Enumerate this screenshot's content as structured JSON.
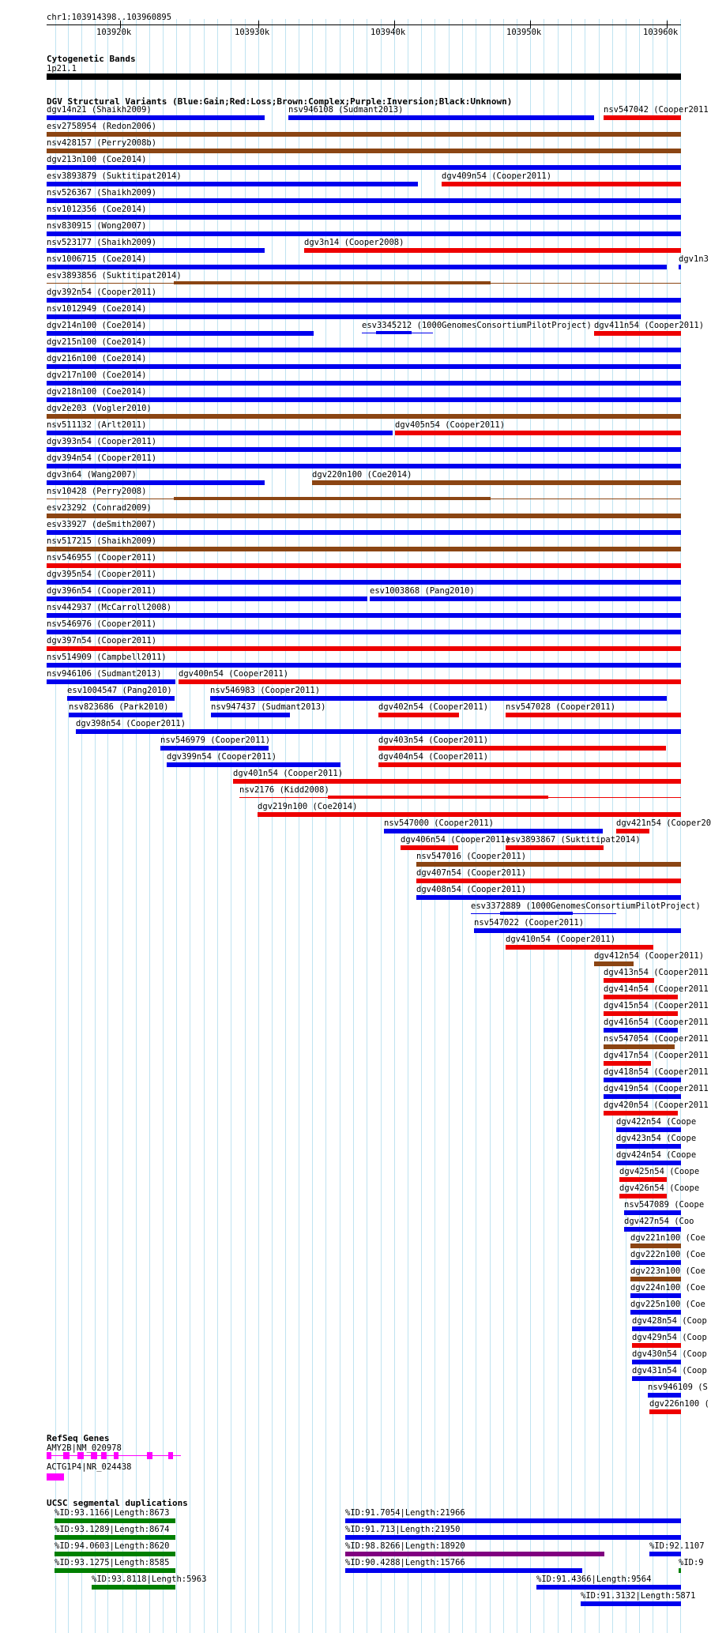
{
  "ruler": {
    "position": "chr1:103914398..103960895",
    "ticks": [
      "103920k",
      "103930k",
      "103940k",
      "103950k",
      "103960k"
    ]
  },
  "cyto": {
    "title": "Cytogenetic Bands",
    "band": "1p21.1"
  },
  "dgv": {
    "title": "DGV Structural Variants (Blue:Gain;Red:Loss;Brown:Complex;Purple:Inversion;Black:Unknown)",
    "colors": {
      "gain": "#0000ee",
      "loss": "#ee0000",
      "complex": "#8b4513",
      "inversion": "#800080",
      "unknown": "#000000"
    },
    "rows": [
      {
        "label": "dgv14n21 (Shaikh2009)",
        "type": "gain"
      },
      {
        "label": "nsv946108 (Sudmant2013)",
        "type": "gain"
      },
      {
        "label": "nsv547042 (Cooper2011",
        "type": "loss"
      },
      {
        "label": "esv2758954 (Redon2006)",
        "type": "complex"
      },
      {
        "label": "nsv428157 (Perry2008b)",
        "type": "complex"
      },
      {
        "label": "dgv213n100 (Coe2014)",
        "type": "gain"
      },
      {
        "label": "esv3893879 (Suktitipat2014)",
        "type": "gain"
      },
      {
        "label": "dgv409n54 (Cooper2011)",
        "type": "loss"
      },
      {
        "label": "nsv526367 (Shaikh2009)",
        "type": "gain"
      },
      {
        "label": "nsv1012356 (Coe2014)",
        "type": "gain"
      },
      {
        "label": "nsv830915 (Wong2007)",
        "type": "gain"
      },
      {
        "label": "nsv523177 (Shaikh2009)",
        "type": "gain"
      },
      {
        "label": "dgv3n14 (Cooper2008)",
        "type": "loss"
      },
      {
        "label": "nsv1006715 (Coe2014)",
        "type": "gain"
      },
      {
        "label": "dgv1n3",
        "type": "gain"
      },
      {
        "label": "esv3893856 (Suktitipat2014)",
        "type": "complex"
      },
      {
        "label": "dgv392n54 (Cooper2011)",
        "type": "gain"
      },
      {
        "label": "nsv1012949 (Coe2014)",
        "type": "gain"
      },
      {
        "label": "dgv214n100 (Coe2014)",
        "type": "gain"
      },
      {
        "label": "esv3345212 (1000GenomesConsortiumPilotProject)",
        "type": "gain"
      },
      {
        "label": "dgv411n54 (Cooper2011)",
        "type": "loss"
      },
      {
        "label": "dgv215n100 (Coe2014)",
        "type": "gain"
      },
      {
        "label": "dgv216n100 (Coe2014)",
        "type": "gain"
      },
      {
        "label": "dgv217n100 (Coe2014)",
        "type": "gain"
      },
      {
        "label": "dgv218n100 (Coe2014)",
        "type": "gain"
      },
      {
        "label": "dgv2e203 (Vogler2010)",
        "type": "complex"
      },
      {
        "label": "nsv511132 (Arlt2011)",
        "type": "gain"
      },
      {
        "label": "dgv405n54 (Cooper2011)",
        "type": "loss"
      },
      {
        "label": "dgv393n54 (Cooper2011)",
        "type": "gain"
      },
      {
        "label": "dgv394n54 (Cooper2011)",
        "type": "gain"
      },
      {
        "label": "dgv3n64 (Wang2007)",
        "type": "gain"
      },
      {
        "label": "dgv220n100 (Coe2014)",
        "type": "complex"
      },
      {
        "label": "nsv10428 (Perry2008)",
        "type": "complex"
      },
      {
        "label": "esv23292 (Conrad2009)",
        "type": "complex"
      },
      {
        "label": "esv33927 (deSmith2007)",
        "type": "gain"
      },
      {
        "label": "nsv517215 (Shaikh2009)",
        "type": "complex"
      },
      {
        "label": "nsv546955 (Cooper2011)",
        "type": "loss"
      },
      {
        "label": "dgv395n54 (Cooper2011)",
        "type": "gain"
      },
      {
        "label": "dgv396n54 (Cooper2011)",
        "type": "gain"
      },
      {
        "label": "esv1003868 (Pang2010)",
        "type": "gain"
      },
      {
        "label": "nsv442937 (McCarroll2008)",
        "type": "gain"
      },
      {
        "label": "nsv546976 (Cooper2011)",
        "type": "gain"
      },
      {
        "label": "dgv397n54 (Cooper2011)",
        "type": "loss"
      },
      {
        "label": "nsv514909 (Campbell2011)",
        "type": "gain"
      },
      {
        "label": "nsv946106 (Sudmant2013)",
        "type": "gain"
      },
      {
        "label": "dgv400n54 (Cooper2011)",
        "type": "loss"
      },
      {
        "label": "esv1004547 (Pang2010)",
        "type": "gain"
      },
      {
        "label": "nsv546983 (Cooper2011)",
        "type": "gain"
      },
      {
        "label": "nsv823686 (Park2010)",
        "type": "gain"
      },
      {
        "label": "nsv947437 (Sudmant2013)",
        "type": "gain"
      },
      {
        "label": "dgv402n54 (Cooper2011)",
        "type": "loss"
      },
      {
        "label": "nsv547028 (Cooper2011)",
        "type": "loss"
      },
      {
        "label": "dgv398n54 (Cooper2011)",
        "type": "gain"
      },
      {
        "label": "nsv546979 (Cooper2011)",
        "type": "gain"
      },
      {
        "label": "dgv403n54 (Cooper2011)",
        "type": "loss"
      },
      {
        "label": "dgv399n54 (Cooper2011)",
        "type": "gain"
      },
      {
        "label": "dgv404n54 (Cooper2011)",
        "type": "loss"
      },
      {
        "label": "dgv401n54 (Cooper2011)",
        "type": "loss"
      },
      {
        "label": "nsv2176 (Kidd2008)",
        "type": "loss"
      },
      {
        "label": "dgv219n100 (Coe2014)",
        "type": "loss"
      },
      {
        "label": "nsv547000 (Cooper2011)",
        "type": "gain"
      },
      {
        "label": "dgv421n54 (Cooper20",
        "type": "loss"
      },
      {
        "label": "dgv406n54 (Cooper2011)",
        "type": "loss"
      },
      {
        "label": "esv3893867 (Suktitipat2014)",
        "type": "loss"
      },
      {
        "label": "nsv547016 (Cooper2011)",
        "type": "complex"
      },
      {
        "label": "dgv407n54 (Cooper2011)",
        "type": "loss"
      },
      {
        "label": "dgv408n54 (Cooper2011)",
        "type": "gain"
      },
      {
        "label": "esv3372889 (1000GenomesConsortiumPilotProject)",
        "type": "gain"
      },
      {
        "label": "nsv547022 (Cooper2011)",
        "type": "gain"
      },
      {
        "label": "dgv410n54 (Cooper2011)",
        "type": "loss"
      },
      {
        "label": "dgv412n54 (Cooper2011)",
        "type": "complex"
      },
      {
        "label": "dgv413n54 (Cooper2011",
        "type": "loss"
      },
      {
        "label": "dgv414n54 (Cooper2011",
        "type": "loss"
      },
      {
        "label": "dgv415n54 (Cooper2011",
        "type": "loss"
      },
      {
        "label": "dgv416n54 (Cooper2011",
        "type": "gain"
      },
      {
        "label": "nsv547054 (Cooper2011",
        "type": "complex"
      },
      {
        "label": "dgv417n54 (Cooper2011",
        "type": "loss"
      },
      {
        "label": "dgv418n54 (Cooper2011",
        "type": "gain"
      },
      {
        "label": "dgv419n54 (Cooper2011",
        "type": "gain"
      },
      {
        "label": "dgv420n54 (Cooper2011",
        "type": "loss"
      },
      {
        "label": "dgv422n54 (Coope",
        "type": "gain"
      },
      {
        "label": "dgv423n54 (Coope",
        "type": "gain"
      },
      {
        "label": "dgv424n54 (Coope",
        "type": "gain"
      },
      {
        "label": "dgv425n54 (Coope",
        "type": "loss"
      },
      {
        "label": "dgv426n54 (Coope",
        "type": "loss"
      },
      {
        "label": "nsv547089 (Coope",
        "type": "gain"
      },
      {
        "label": "dgv427n54 (Coo",
        "type": "gain"
      },
      {
        "label": "dgv221n100 (Coe",
        "type": "complex"
      },
      {
        "label": "dgv222n100 (Coe",
        "type": "gain"
      },
      {
        "label": "dgv223n100 (Coe",
        "type": "complex"
      },
      {
        "label": "dgv224n100 (Coe",
        "type": "gain"
      },
      {
        "label": "dgv225n100 (Coe",
        "type": "gain"
      },
      {
        "label": "dgv428n54 (Coop",
        "type": "gain"
      },
      {
        "label": "dgv429n54 (Coop",
        "type": "loss"
      },
      {
        "label": "dgv430n54 (Coop",
        "type": "gain"
      },
      {
        "label": "dgv431n54 (Coop",
        "type": "gain"
      },
      {
        "label": "nsv946109 (S",
        "type": "gain"
      },
      {
        "label": "dgv226n100 (",
        "type": "loss"
      }
    ]
  },
  "refseq": {
    "title": "RefSeq Genes",
    "genes": [
      {
        "label": "AMY2B|NM_020978"
      },
      {
        "label": "ACTG1P4|NR_024438"
      }
    ]
  },
  "segdups": {
    "title": "UCSC segmental duplications",
    "items": [
      {
        "label": "%ID:93.1166|Length:8673",
        "color": "green"
      },
      {
        "label": "%ID:91.7054|Length:21966",
        "color": "blue"
      },
      {
        "label": "%ID:93.1289|Length:8674",
        "color": "green"
      },
      {
        "label": "%ID:91.713|Length:21950",
        "color": "blue"
      },
      {
        "label": "%ID:94.0603|Length:8620",
        "color": "green"
      },
      {
        "label": "%ID:98.8266|Length:18920",
        "color": "purple"
      },
      {
        "label": "%ID:92.1107",
        "color": "blue"
      },
      {
        "label": "%ID:93.1275|Length:8585",
        "color": "green"
      },
      {
        "label": "%ID:90.4288|Length:15766",
        "color": "blue"
      },
      {
        "label": "%ID:9",
        "color": "green"
      },
      {
        "label": "%ID:93.8118|Length:5963",
        "color": "green"
      },
      {
        "label": "%ID:91.4366|Length:9564",
        "color": "blue"
      },
      {
        "label": "%ID:91.3132|Length:5871",
        "color": "blue"
      }
    ]
  }
}
